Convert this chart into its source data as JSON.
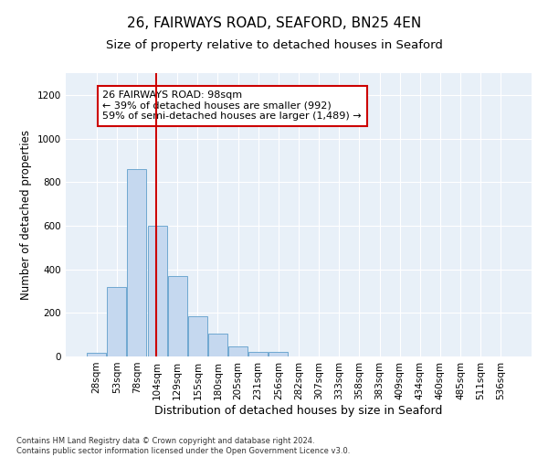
{
  "title_line1": "26, FAIRWAYS ROAD, SEAFORD, BN25 4EN",
  "title_line2": "Size of property relative to detached houses in Seaford",
  "xlabel": "Distribution of detached houses by size in Seaford",
  "ylabel": "Number of detached properties",
  "bar_color": "#c5d8ef",
  "bar_edge_color": "#6fa8d0",
  "background_color": "#e8f0f8",
  "annotation_text": "26 FAIRWAYS ROAD: 98sqm\n← 39% of detached houses are smaller (992)\n59% of semi-detached houses are larger (1,489) →",
  "vline_x": 3,
  "vline_color": "#cc0000",
  "annotation_box_color": "white",
  "annotation_box_edge": "#cc0000",
  "categories": [
    "28sqm",
    "53sqm",
    "78sqm",
    "104sqm",
    "129sqm",
    "155sqm",
    "180sqm",
    "205sqm",
    "231sqm",
    "256sqm",
    "282sqm",
    "307sqm",
    "333sqm",
    "358sqm",
    "383sqm",
    "409sqm",
    "434sqm",
    "460sqm",
    "485sqm",
    "511sqm",
    "536sqm"
  ],
  "values": [
    15,
    320,
    860,
    600,
    370,
    185,
    105,
    47,
    20,
    20,
    0,
    0,
    0,
    0,
    0,
    0,
    0,
    0,
    0,
    0,
    0
  ],
  "ylim": [
    0,
    1300
  ],
  "yticks": [
    0,
    200,
    400,
    600,
    800,
    1000,
    1200
  ],
  "footnote": "Contains HM Land Registry data © Crown copyright and database right 2024.\nContains public sector information licensed under the Open Government Licence v3.0.",
  "title_fontsize": 11,
  "subtitle_fontsize": 9.5,
  "tick_fontsize": 7.5,
  "ylabel_fontsize": 8.5,
  "xlabel_fontsize": 9,
  "annotation_fontsize": 8,
  "footnote_fontsize": 6
}
